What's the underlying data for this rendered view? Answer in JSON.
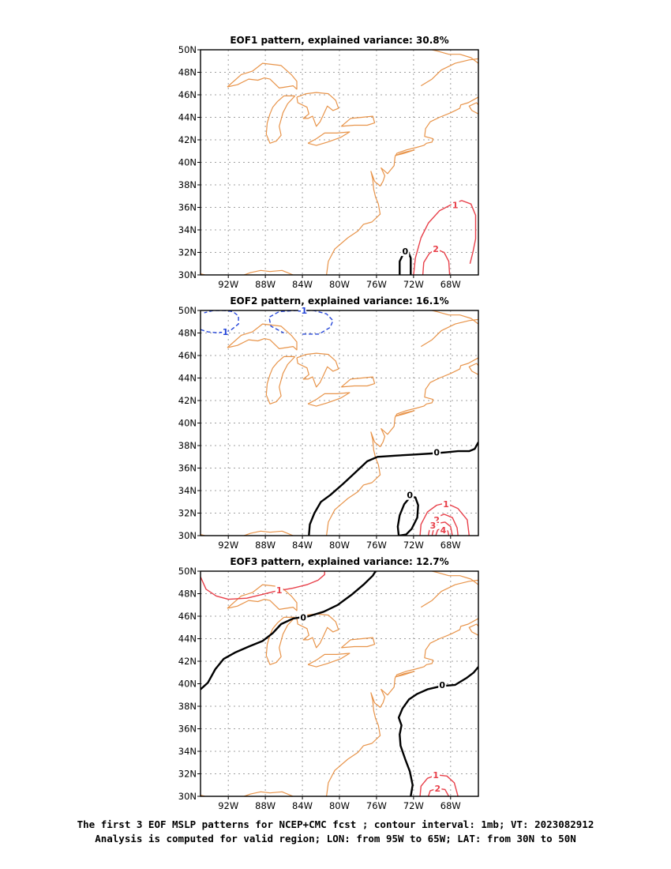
{
  "colors": {
    "coast": "#e8944a",
    "positive": "#e8404a",
    "negative": "#2646d8",
    "zero": "#000000",
    "grid": "#a0a0a0"
  },
  "caption": {
    "line1": "The first 3 EOF MSLP patterns for NCEP+CMC fcst ; contour interval: 1mb; VT: 2023082912",
    "line2": "Analysis is computed for valid region; LON: from 95W to 65W; LAT: from 30N to 50N"
  },
  "chart_data": [
    {
      "type": "contour-map",
      "title": "EOF1 pattern, explained variance: 30.8%",
      "lon_range": [
        -95,
        -65
      ],
      "lat_range": [
        30,
        50
      ],
      "x_ticks": [
        "92W",
        "88W",
        "84W",
        "80W",
        "76W",
        "72W",
        "68W"
      ],
      "y_ticks": [
        "30N",
        "32N",
        "34N",
        "36N",
        "38N",
        "40N",
        "42N",
        "44N",
        "46N",
        "48N",
        "50N"
      ],
      "grid": true,
      "contours": [
        {
          "level": 0,
          "sign": "zero",
          "label": "0",
          "points": [
            [
              -73.5,
              30
            ],
            [
              -73.5,
              31.2
            ],
            [
              -73.1,
              31.9
            ],
            [
              -72.6,
              32.1
            ],
            [
              -72.3,
              31.5
            ],
            [
              -72.3,
              30
            ]
          ],
          "label_at": [
            -72.9,
            32.1
          ]
        },
        {
          "level": 1,
          "sign": "positive",
          "label": "1",
          "points": [
            [
              -72,
              30
            ],
            [
              -71.8,
              31.5
            ],
            [
              -71.2,
              33.3
            ],
            [
              -70.4,
              34.6
            ],
            [
              -69.2,
              35.7
            ],
            [
              -67.8,
              36.3
            ],
            [
              -66.8,
              36.6
            ],
            [
              -65.8,
              36.3
            ],
            [
              -65.3,
              35.3
            ],
            [
              -65.3,
              33.2
            ],
            [
              -65.6,
              32
            ],
            [
              -65.9,
              31
            ]
          ],
          "label_at": [
            -67.5,
            36.2
          ]
        },
        {
          "level": 2,
          "sign": "positive",
          "label": "2",
          "points": [
            [
              -71,
              30
            ],
            [
              -70.9,
              31.1
            ],
            [
              -70.3,
              31.9
            ],
            [
              -69.6,
              32.3
            ],
            [
              -68.7,
              32
            ],
            [
              -68.2,
              31.2
            ],
            [
              -68.1,
              30
            ]
          ],
          "label_at": [
            -69.6,
            32.3
          ]
        }
      ]
    },
    {
      "type": "contour-map",
      "title": "EOF2 pattern, explained variance: 16.1%",
      "lon_range": [
        -95,
        -65
      ],
      "lat_range": [
        30,
        50
      ],
      "x_ticks": [
        "92W",
        "88W",
        "84W",
        "80W",
        "76W",
        "72W",
        "68W"
      ],
      "y_ticks": [
        "30N",
        "32N",
        "34N",
        "36N",
        "38N",
        "40N",
        "42N",
        "44N",
        "46N",
        "48N",
        "50N"
      ],
      "grid": true,
      "contours": [
        {
          "level": -1,
          "sign": "negative",
          "label": "-1",
          "points": [
            [
              -95,
              48.3
            ],
            [
              -94.2,
              48.1
            ],
            [
              -93,
              48
            ],
            [
              -91.8,
              48.2
            ],
            [
              -90.9,
              48.8
            ],
            [
              -90.9,
              49.5
            ],
            [
              -91.5,
              49.9
            ],
            [
              -92.5,
              50
            ],
            [
              -93.6,
              50
            ],
            [
              -94.6,
              49.8
            ]
          ],
          "label_at": [
            -92.5,
            48.1
          ]
        },
        {
          "level": -1,
          "sign": "negative",
          "label": "-1",
          "points": [
            [
              -84,
              47.9
            ],
            [
              -82.2,
              47.9
            ],
            [
              -81,
              48.5
            ],
            [
              -80.7,
              49.1
            ],
            [
              -81.4,
              49.7
            ],
            [
              -82.8,
              50
            ],
            [
              -84.6,
              50
            ],
            [
              -86.5,
              49.9
            ],
            [
              -87.6,
              49.4
            ],
            [
              -87.4,
              48.6
            ],
            [
              -86,
              48
            ]
          ],
          "label_at": [
            -84,
            50
          ]
        },
        {
          "level": 0,
          "sign": "zero",
          "label": "0",
          "points": [
            [
              -83.3,
              30
            ],
            [
              -83.2,
              31
            ],
            [
              -82.7,
              32
            ],
            [
              -82,
              33
            ],
            [
              -81,
              33.6
            ],
            [
              -79.6,
              34.6
            ],
            [
              -78.3,
              35.6
            ],
            [
              -77,
              36.6
            ],
            [
              -75.9,
              37
            ],
            [
              -74,
              37.1
            ],
            [
              -72,
              37.2
            ],
            [
              -70,
              37.3
            ],
            [
              -68.5,
              37.4
            ],
            [
              -67.2,
              37.5
            ],
            [
              -66,
              37.5
            ],
            [
              -65.4,
              37.7
            ],
            [
              -65,
              38.3
            ]
          ],
          "label_at": [
            -69.5,
            37.4
          ]
        },
        {
          "level": 0,
          "sign": "zero",
          "label": "0",
          "points": [
            [
              -73.6,
              30
            ],
            [
              -73.7,
              30.8
            ],
            [
              -73.5,
              31.8
            ],
            [
              -73,
              32.8
            ],
            [
              -72.4,
              33.4
            ],
            [
              -71.8,
              33.4
            ],
            [
              -71.5,
              32.7
            ],
            [
              -71.6,
              31.6
            ],
            [
              -72.2,
              30.6
            ],
            [
              -72.8,
              30.1
            ],
            [
              -73.6,
              30
            ]
          ],
          "label_at": [
            -72.4,
            33.6
          ]
        },
        {
          "level": 1,
          "sign": "positive",
          "label": "1",
          "points": [
            [
              -71.3,
              30
            ],
            [
              -71.2,
              31
            ],
            [
              -70.5,
              32.1
            ],
            [
              -69.5,
              32.7
            ],
            [
              -68.5,
              32.9
            ],
            [
              -67.2,
              32.4
            ],
            [
              -66.2,
              31.4
            ],
            [
              -66,
              30
            ]
          ],
          "label_at": [
            -68.5,
            32.8
          ]
        },
        {
          "level": 2,
          "sign": "positive",
          "label": "2",
          "points": [
            [
              -70.4,
              30
            ],
            [
              -70.2,
              30.9
            ],
            [
              -69.6,
              31.6
            ],
            [
              -68.7,
              31.9
            ],
            [
              -67.8,
              31.6
            ],
            [
              -67.3,
              30.7
            ],
            [
              -67.2,
              30
            ]
          ],
          "label_at": [
            -69.5,
            31.4
          ]
        },
        {
          "level": 3,
          "sign": "positive",
          "label": "3",
          "points": [
            [
              -70,
              30
            ],
            [
              -69.8,
              30.7
            ],
            [
              -69.3,
              31.1
            ],
            [
              -68.6,
              31.2
            ],
            [
              -68,
              30.8
            ],
            [
              -67.8,
              30
            ]
          ],
          "label_at": [
            -69.9,
            30.9
          ]
        },
        {
          "level": 4,
          "sign": "positive",
          "label": "4",
          "points": [
            [
              -69.6,
              30
            ],
            [
              -69.4,
              30.5
            ],
            [
              -68.8,
              30.7
            ],
            [
              -68.3,
              30.4
            ],
            [
              -68.2,
              30
            ]
          ],
          "label_at": [
            -68.8,
            30.5
          ]
        }
      ]
    },
    {
      "type": "contour-map",
      "title": "EOF3 pattern, explained variance: 12.7%",
      "lon_range": [
        -95,
        -65
      ],
      "lat_range": [
        30,
        50
      ],
      "x_ticks": [
        "92W",
        "88W",
        "84W",
        "80W",
        "76W",
        "72W",
        "68W"
      ],
      "y_ticks": [
        "30N",
        "32N",
        "34N",
        "36N",
        "38N",
        "40N",
        "42N",
        "44N",
        "46N",
        "48N",
        "50N"
      ],
      "grid": true,
      "contours": [
        {
          "level": 0,
          "sign": "zero",
          "label": "0",
          "points": [
            [
              -95,
              39.5
            ],
            [
              -94.2,
              40.1
            ],
            [
              -93.4,
              41.3
            ],
            [
              -92.5,
              42.2
            ],
            [
              -91.2,
              42.8
            ],
            [
              -89.8,
              43.3
            ],
            [
              -88.3,
              43.8
            ],
            [
              -87.2,
              44.5
            ],
            [
              -86.3,
              45.3
            ],
            [
              -85,
              45.8
            ],
            [
              -83.3,
              46
            ],
            [
              -81.7,
              46.4
            ],
            [
              -80.2,
              47
            ],
            [
              -78.7,
              47.9
            ],
            [
              -77.4,
              48.8
            ],
            [
              -76.4,
              49.6
            ],
            [
              -76.1,
              50
            ]
          ],
          "label_at": [
            -83.9,
            45.9
          ]
        },
        {
          "level": 0,
          "sign": "zero",
          "label": "0",
          "points": [
            [
              -72.3,
              30
            ],
            [
              -72.1,
              31
            ],
            [
              -72.4,
              32.2
            ],
            [
              -72.9,
              33.3
            ],
            [
              -73.4,
              34.5
            ],
            [
              -73.5,
              35.5
            ],
            [
              -73.3,
              36.3
            ],
            [
              -73.6,
              37
            ],
            [
              -73.2,
              37.8
            ],
            [
              -72.5,
              38.6
            ],
            [
              -71.6,
              39.1
            ],
            [
              -70.5,
              39.5
            ],
            [
              -69,
              39.8
            ],
            [
              -67.5,
              39.9
            ],
            [
              -66.3,
              40.5
            ],
            [
              -65.5,
              41
            ],
            [
              -65,
              41.5
            ]
          ],
          "label_at": [
            -68.9,
            39.9
          ]
        },
        {
          "level": 1,
          "sign": "positive",
          "label": "1",
          "points": [
            [
              -95,
              49.5
            ],
            [
              -94.4,
              48.4
            ],
            [
              -93.3,
              47.8
            ],
            [
              -92,
              47.5
            ],
            [
              -90,
              47.6
            ],
            [
              -88.5,
              47.9
            ],
            [
              -87,
              48.2
            ],
            [
              -85,
              48.5
            ],
            [
              -83.5,
              48.8
            ],
            [
              -82.3,
              49.2
            ],
            [
              -81.6,
              49.7
            ],
            [
              -81.6,
              50
            ]
          ],
          "label_at": [
            -86.5,
            48.3
          ]
        },
        {
          "level": 1,
          "sign": "positive",
          "label": "1",
          "points": [
            [
              -71.3,
              30
            ],
            [
              -71.2,
              30.9
            ],
            [
              -70.5,
              31.6
            ],
            [
              -69.5,
              31.9
            ],
            [
              -68.4,
              31.8
            ],
            [
              -67.6,
              31.2
            ],
            [
              -67.2,
              30
            ]
          ],
          "label_at": [
            -69.6,
            31.9
          ]
        },
        {
          "level": 2,
          "sign": "positive",
          "label": "2",
          "points": [
            [
              -70.4,
              30
            ],
            [
              -70.2,
              30.5
            ],
            [
              -69.4,
              30.7
            ],
            [
              -68.6,
              30.6
            ],
            [
              -68.2,
              30
            ]
          ],
          "label_at": [
            -69.4,
            30.7
          ]
        }
      ]
    }
  ]
}
